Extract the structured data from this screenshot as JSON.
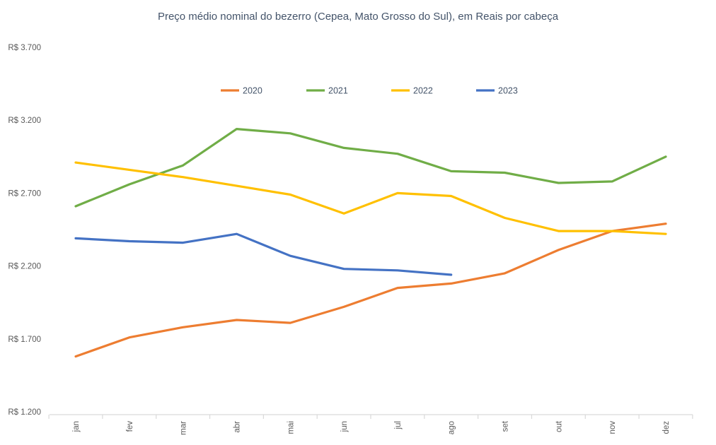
{
  "chart_data": {
    "type": "line",
    "title": "Preço médio nominal do bezerro (Cepea, Mato Grosso do Sul), em Reais por cabeça",
    "categories": [
      "jan",
      "fev",
      "mar",
      "abr",
      "mai",
      "jun",
      "jul",
      "ago",
      "set",
      "out",
      "nov",
      "dez"
    ],
    "series": [
      {
        "name": "2020",
        "color": "#ED7D31",
        "values": [
          1580,
          1710,
          1780,
          1830,
          1810,
          1920,
          2050,
          2080,
          2150,
          2310,
          2440,
          2490
        ]
      },
      {
        "name": "2021",
        "color": "#70AD47",
        "values": [
          2610,
          2760,
          2890,
          3140,
          3110,
          3010,
          2970,
          2850,
          2840,
          2770,
          2780,
          2950
        ]
      },
      {
        "name": "2022",
        "color": "#FFC000",
        "values": [
          2910,
          2860,
          2810,
          2750,
          2690,
          2560,
          2700,
          2680,
          2530,
          2440,
          2440,
          2420
        ]
      },
      {
        "name": "2023",
        "color": "#4472C4",
        "values": [
          2390,
          2370,
          2360,
          2420,
          2270,
          2180,
          2170,
          2140,
          null,
          null,
          null,
          null
        ]
      }
    ],
    "y_axis": {
      "tick_labels": [
        "R$ 3.700",
        "R$ 3.200",
        "R$ 2.700",
        "R$ 2.200",
        "R$ 1.700",
        "R$ 1.200"
      ],
      "tick_values": [
        3700,
        3200,
        2700,
        2200,
        1700,
        1200
      ],
      "min": 1200,
      "max": 3700
    },
    "xlabel": "",
    "ylabel": "",
    "legend_position": "top-center",
    "grid": false,
    "colors": {
      "title_text": "#44546A",
      "legend_text": "#44546A",
      "axis_text": "#595959",
      "axis_line": "#D9D9D9",
      "background": "#FFFFFF"
    }
  }
}
